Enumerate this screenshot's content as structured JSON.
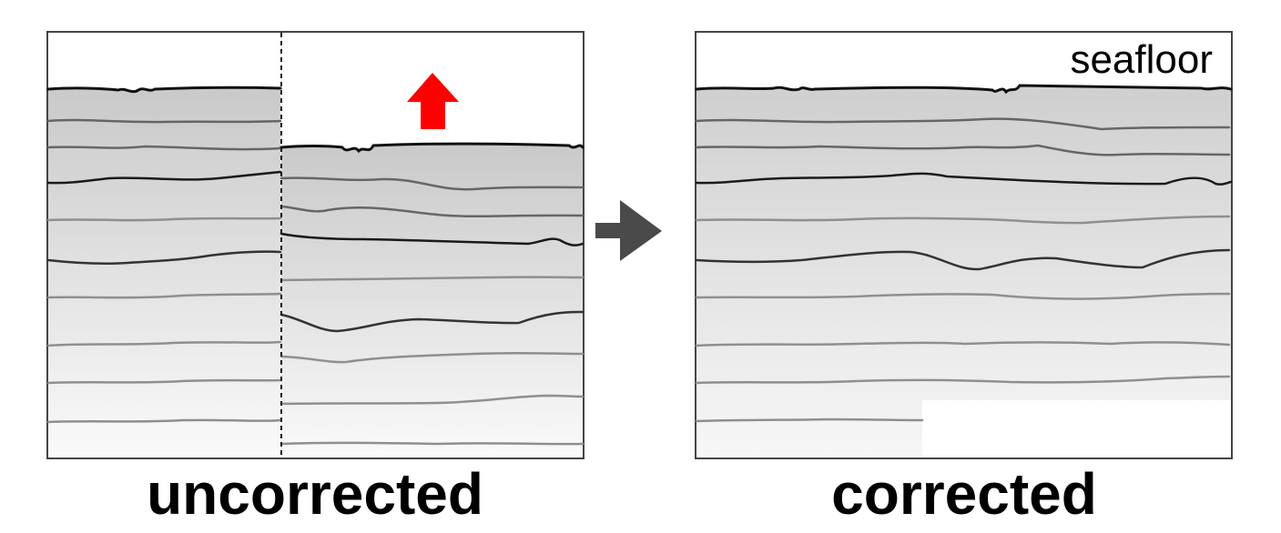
{
  "diagram": {
    "left_panel": {
      "caption": "uncorrected"
    },
    "right_panel": {
      "caption": "corrected",
      "seafloor_label": "seafloor"
    },
    "colors": {
      "panel_border": "#444444",
      "gradient_top": "#c9c9c9",
      "gradient_bottom": "#fafafa",
      "horizon_dark": "#1a1a1a",
      "horizon_mid": "#666666",
      "horizon_light": "#8f8f8f",
      "shift_arrow": "#ff0000",
      "process_arrow": "#4a4a4a"
    },
    "icons": {
      "shift": "arrow-up-icon",
      "process": "arrow-right-icon"
    }
  }
}
